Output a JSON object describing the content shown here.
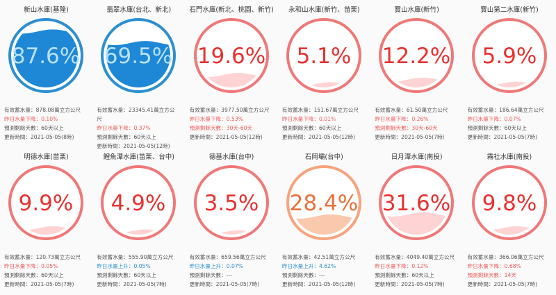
{
  "colors": {
    "blue_ring": "#2c8fd1",
    "blue_fill": "#1e88d6",
    "red_ring": "#f07878",
    "red_text": "#e8312f",
    "pink_fill": "#ffd3d3",
    "orange_ring": "#f7a37c",
    "orange_text": "#e8713b",
    "orange_fill": "#f9c8ad"
  },
  "labels": {
    "capacity": "有效蓄水量：",
    "predict": "預測剩餘天數：",
    "update": "更新時間："
  },
  "reservoirs": [
    {
      "name": "新山水庫(基隆)",
      "percent": "87.6%",
      "level": 0.876,
      "theme": "blue",
      "capacity": "878.08萬立方公尺",
      "change": "昨日水量下降：0.10%",
      "change_type": "down",
      "days": "60天以上",
      "days_type": "dark",
      "update": "2021-05-05(8時)"
    },
    {
      "name": "翡翠水庫(台北、新北)",
      "percent": "69.5%",
      "level": 0.695,
      "theme": "blue",
      "capacity": "23345.41萬立方公",
      "capacity2": "尺",
      "change": "昨日水量下降：0.37%",
      "change_type": "down",
      "days": "60天以上",
      "days_type": "dark",
      "update": "2021-05-05(12時)"
    },
    {
      "name": "石門水庫(新北、桃園、新竹)",
      "percent": "19.6%",
      "level": 0.196,
      "theme": "red",
      "capacity": "3977.50萬立方公尺",
      "change": "昨日水量下降：0.53%",
      "change_type": "down",
      "days": "30天-60天",
      "days_type": "red",
      "update": "2021-05-05(12時)"
    },
    {
      "name": "永和山水庫(新竹、苗栗)",
      "percent": "5.1%",
      "level": 0.051,
      "theme": "red",
      "capacity": "151.67萬立方公尺",
      "change": "昨日水量下降：0.01%",
      "change_type": "down",
      "days": "60天以上",
      "days_type": "dark",
      "update": "2021-05-05(12時)"
    },
    {
      "name": "寶山水庫(新竹)",
      "percent": "12.2%",
      "level": 0.122,
      "theme": "red",
      "capacity": "61.50萬立方公尺",
      "change": "昨日水量下降：0.26%",
      "change_type": "down",
      "days": "30天-60天",
      "days_type": "red",
      "update": "2021-05-05(7時)"
    },
    {
      "name": "寶山第二水庫(新竹)",
      "percent": "5.9%",
      "level": 0.059,
      "theme": "red",
      "capacity": "186.64萬立方公尺",
      "change": "昨日水量下降：0.07%",
      "change_type": "down",
      "days": "60天以上",
      "days_type": "dark",
      "update": "2021-05-05(7時)"
    },
    {
      "name": "明德水庫(苗栗)",
      "percent": "9.9%",
      "level": 0.099,
      "theme": "red",
      "capacity": "120.73萬立方公尺",
      "change": "昨日水量下降：0.05%",
      "change_type": "down",
      "days": "60天以上",
      "days_type": "dark",
      "update": "2021-05-05(7時)"
    },
    {
      "name": "鯉魚潭水庫(苗栗、台中)",
      "percent": "4.9%",
      "level": 0.049,
      "theme": "red",
      "capacity": "555.90萬立方公尺",
      "change": "昨日水量上升：0.05%",
      "change_type": "up",
      "days": "60天以上",
      "days_type": "dark",
      "update": "2021-05-05(7時)"
    },
    {
      "name": "德基水庫(台中)",
      "percent": "3.5%",
      "level": 0.035,
      "theme": "red",
      "capacity": "659.56萬立方公尺",
      "change": "昨日水量上升：0.07%",
      "change_type": "up",
      "days": "---",
      "days_type": "dark",
      "update": "2021-05-05(7時)"
    },
    {
      "name": "石岡壩(台中)",
      "percent": "28.4%",
      "level": 0.284,
      "theme": "orange",
      "capacity": "42.51萬立方公尺",
      "change": "昨日水量上升：4.62%",
      "change_type": "up",
      "days": "---",
      "days_type": "dark",
      "update": "2021-05-05(12時)"
    },
    {
      "name": "日月潭水庫(南投)",
      "percent": "31.6%",
      "level": 0.316,
      "theme": "red",
      "capacity": "4049.40萬立方公尺",
      "change": "昨日水量下降：0.12%",
      "change_type": "down",
      "days": "60天以上",
      "days_type": "dark",
      "update": "2021-05-05(7時)"
    },
    {
      "name": "霧社水庫(南投)",
      "percent": "9.8%",
      "level": 0.098,
      "theme": "red",
      "capacity": "366.06萬立方公尺",
      "change": "昨日水量下降：0.68%",
      "change_type": "down",
      "days": "14天",
      "days_type": "red",
      "update": "2021-05-05(7時)"
    }
  ]
}
